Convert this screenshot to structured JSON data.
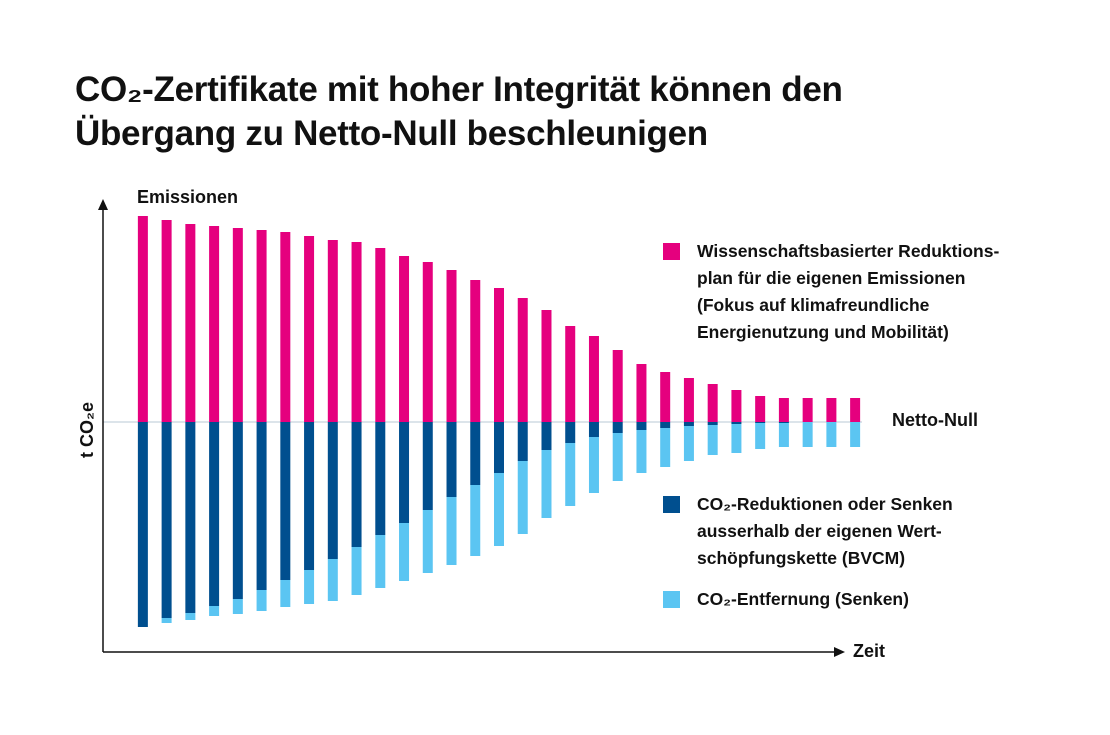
{
  "chart_data": {
    "type": "bar",
    "stacked": true,
    "title": "CO₂-Zertifikate mit hoher Integrität können den\nÜbergang zu Netto-Null beschleunigen",
    "y_label": "t CO₂e",
    "x_label": "Zeit",
    "annotations": [
      "Emissionen",
      "Netto-Null"
    ],
    "categories": [
      null,
      null,
      null,
      null,
      null,
      null,
      null,
      null,
      null,
      null,
      null,
      null,
      null,
      null,
      null,
      null,
      null,
      null,
      null,
      null,
      null,
      null,
      null,
      null,
      null,
      null,
      null,
      null,
      null,
      null,
      null
    ],
    "series": [
      {
        "name": "Wissenschaftsbasierter Reduktions-\nplan für die eigenen Emissionen\n(Fokus auf klimafreundliche\nEnergienutzung und Mobilität)",
        "color": "#e5007e",
        "values": [
          103,
          101,
          99,
          98,
          97,
          96,
          95,
          93,
          91,
          90,
          87,
          83,
          80,
          76,
          71,
          67,
          62,
          56,
          48,
          43,
          36,
          29,
          25,
          22,
          19,
          16,
          13,
          12,
          12,
          12,
          12
        ]
      },
      {
        "name": "CO₂-Reduktionen oder Senken\nausserhalb der eigenen Wert-\nschöpfungskette (BVCM)",
        "color": "#004f8f",
        "values": [
          -102.5,
          -98,
          -95.5,
          -92,
          -88.5,
          -84,
          -79,
          -74,
          -68.5,
          -62.5,
          -56.5,
          -50.5,
          -44,
          -37.5,
          -31.5,
          -25.5,
          -19.5,
          -14,
          -10.5,
          -7.5,
          -5.5,
          -4,
          -3,
          -2,
          -1.5,
          -1,
          -0.5,
          -0.5,
          0,
          0,
          0
        ]
      },
      {
        "name": "CO₂-Entfernung (Senken)",
        "color": "#5bc5f2",
        "values": [
          0,
          -2.5,
          -3.5,
          -5,
          -7.5,
          -10.5,
          -13.5,
          -17,
          -21,
          -24,
          -26.5,
          -29,
          -31.5,
          -34,
          -35.5,
          -36.5,
          -36.5,
          -34,
          -31.5,
          -28,
          -24,
          -21.5,
          -19.5,
          -17.5,
          -15,
          -14.5,
          -13,
          -12,
          -12.5,
          -12.5,
          -12.5
        ]
      }
    ],
    "ylim": [
      -115,
      110
    ],
    "legend": "right"
  }
}
